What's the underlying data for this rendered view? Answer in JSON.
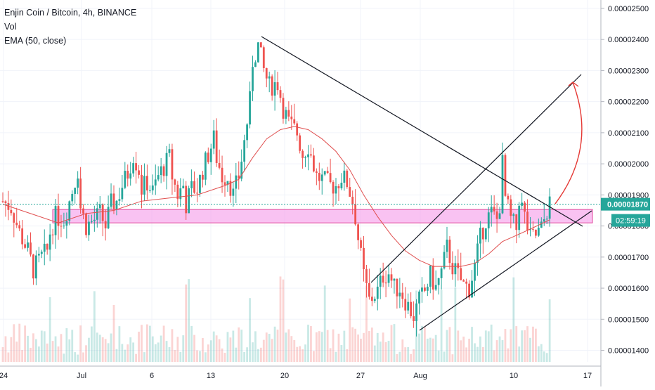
{
  "header": {
    "title": "Enjin Coin / Bitcoin, 4h, BINANCE",
    "indicator_vol": "Vol",
    "indicator_ema": "EMA (50, close)"
  },
  "chart_data": {
    "type": "candlestick",
    "symbol": "ENJBTC",
    "exchange": "BINANCE",
    "timeframe": "4h",
    "y_range": [
      1.3628e-05,
      2.527e-05
    ],
    "y_ticks": [
      "0.00001400",
      "0.00001500",
      "0.00001600",
      "0.00001700",
      "0.00001800",
      "0.00001900",
      "0.00002000",
      "0.00002100",
      "0.00002200",
      "0.00002300",
      "0.00002400",
      "0.00002500"
    ],
    "x_ticks": [
      "24",
      "Jul",
      "6",
      "13",
      "20",
      "27",
      "Aug",
      "10",
      "17"
    ],
    "last_price": "0.00001870",
    "countdown": "02:59:19",
    "grid": true,
    "colors": {
      "up": "#26a69a",
      "down": "#ef5350",
      "ema": "#e05050",
      "price_tag": "#26a69a",
      "zone": "#f48fe8",
      "arrow": "#e53935"
    },
    "candle_path": [
      [
        0,
        1.88e-05
      ],
      [
        3,
        1.86e-05
      ],
      [
        6,
        1.78e-05
      ],
      [
        9,
        1.72e-05
      ],
      [
        11,
        1.66e-05
      ],
      [
        14,
        1.7e-05
      ],
      [
        16,
        1.72e-05
      ],
      [
        17,
        1.78e-05
      ],
      [
        19,
        1.83e-05
      ],
      [
        22,
        1.82e-05
      ],
      [
        24,
        1.88e-05
      ],
      [
        27,
        1.98e-05
      ],
      [
        28,
        1.86e-05
      ],
      [
        30,
        1.8e-05
      ],
      [
        33,
        1.82e-05
      ],
      [
        35,
        1.84e-05
      ],
      [
        37,
        1.8e-05
      ],
      [
        39,
        1.87e-05
      ],
      [
        41,
        1.88e-05
      ],
      [
        43,
        1.93e-05
      ],
      [
        45,
        1.97e-05
      ],
      [
        47,
        2.03e-05
      ],
      [
        49,
        1.98e-05
      ],
      [
        50,
        1.92e-05
      ],
      [
        52,
        1.94e-05
      ],
      [
        54,
        1.91e-05
      ],
      [
        56,
        1.96e-05
      ],
      [
        58,
        1.99e-05
      ],
      [
        60,
        2.02e-05
      ],
      [
        61,
        1.96e-05
      ],
      [
        63,
        1.9e-05
      ],
      [
        65,
        1.93e-05
      ],
      [
        66,
        1.87e-05
      ],
      [
        68,
        1.92e-05
      ],
      [
        70,
        1.92e-05
      ],
      [
        72,
        1.98e-05
      ],
      [
        74,
        2.03e-05
      ],
      [
        76,
        2.08e-05
      ],
      [
        77,
        2.02e-05
      ],
      [
        79,
        1.96e-05
      ],
      [
        81,
        1.96e-05
      ],
      [
        83,
        1.9e-05
      ],
      [
        85,
        1.96e-05
      ],
      [
        87,
        2.07e-05
      ],
      [
        89,
        2.2e-05
      ],
      [
        90,
        2.33e-05
      ],
      [
        92,
        2.38e-05
      ],
      [
        94,
        2.3e-05
      ],
      [
        96,
        2.25e-05
      ],
      [
        99,
        2.26e-05
      ],
      [
        101,
        2.18e-05
      ],
      [
        103,
        2.13e-05
      ],
      [
        106,
        2.1e-05
      ],
      [
        108,
        2.03e-05
      ],
      [
        110,
        2.06e-05
      ],
      [
        113,
        1.96e-05
      ],
      [
        115,
        1.95e-05
      ],
      [
        118,
        1.93e-05
      ],
      [
        120,
        1.93e-05
      ],
      [
        122,
        1.96e-05
      ],
      [
        124,
        1.94e-05
      ],
      [
        126,
        1.88e-05
      ],
      [
        127,
        1.83e-05
      ],
      [
        128,
        1.76e-05
      ],
      [
        130,
        1.64e-05
      ],
      [
        132,
        1.56e-05
      ],
      [
        135,
        1.59e-05
      ],
      [
        137,
        1.64e-05
      ],
      [
        139,
        1.65e-05
      ],
      [
        141,
        1.6e-05
      ],
      [
        143,
        1.6e-05
      ],
      [
        145,
        1.56e-05
      ],
      [
        148,
        1.51e-05
      ],
      [
        150,
        1.56e-05
      ],
      [
        152,
        1.59e-05
      ],
      [
        154,
        1.64e-05
      ],
      [
        156,
        1.6e-05
      ],
      [
        158,
        1.65e-05
      ],
      [
        160,
        1.73e-05
      ],
      [
        162,
        1.67e-05
      ],
      [
        164,
        1.64e-05
      ],
      [
        166,
        1.61e-05
      ],
      [
        168,
        1.6e-05
      ],
      [
        170,
        1.67e-05
      ],
      [
        172,
        1.76e-05
      ],
      [
        174,
        1.82e-05
      ],
      [
        176,
        1.84e-05
      ],
      [
        178,
        1.82e-05
      ],
      [
        179,
        1.87e-05
      ],
      [
        180,
        2e-05
      ],
      [
        181,
        1.89e-05
      ],
      [
        183,
        1.82e-05
      ],
      [
        185,
        1.79e-05
      ],
      [
        186,
        1.89e-05
      ],
      [
        188,
        1.83e-05
      ],
      [
        190,
        1.76e-05
      ],
      [
        192,
        1.77e-05
      ],
      [
        194,
        1.79e-05
      ],
      [
        196,
        1.85e-05
      ],
      [
        197,
        1.87e-05
      ]
    ],
    "ema_path": [
      [
        0,
        1.87e-05
      ],
      [
        10,
        1.84e-05
      ],
      [
        20,
        1.81e-05
      ],
      [
        30,
        1.84e-05
      ],
      [
        40,
        1.85e-05
      ],
      [
        50,
        1.88e-05
      ],
      [
        60,
        1.89e-05
      ],
      [
        70,
        1.9e-05
      ],
      [
        80,
        1.93e-05
      ],
      [
        85,
        1.95e-05
      ],
      [
        90,
        2.02e-05
      ],
      [
        95,
        2.08e-05
      ],
      [
        100,
        2.11e-05
      ],
      [
        105,
        2.12e-05
      ],
      [
        110,
        2.11e-05
      ],
      [
        115,
        2.08e-05
      ],
      [
        120,
        2.04e-05
      ],
      [
        125,
        1.98e-05
      ],
      [
        130,
        1.9e-05
      ],
      [
        135,
        1.83e-05
      ],
      [
        140,
        1.77e-05
      ],
      [
        145,
        1.72e-05
      ],
      [
        150,
        1.69e-05
      ],
      [
        155,
        1.67e-05
      ],
      [
        160,
        1.67e-05
      ],
      [
        165,
        1.67e-05
      ],
      [
        170,
        1.68e-05
      ],
      [
        175,
        1.71e-05
      ],
      [
        180,
        1.75e-05
      ],
      [
        185,
        1.77e-05
      ],
      [
        190,
        1.79e-05
      ],
      [
        197,
        1.82e-05
      ]
    ]
  }
}
